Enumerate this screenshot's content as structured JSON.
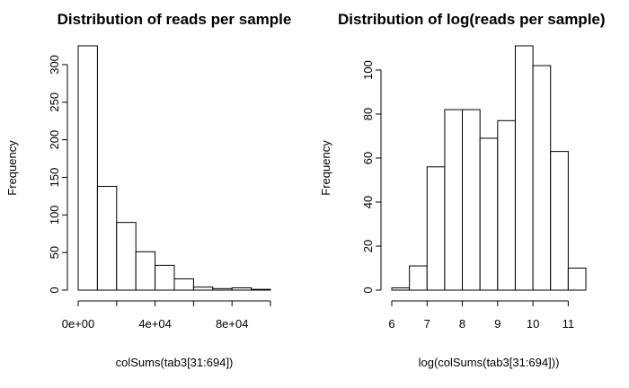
{
  "chart_data": [
    {
      "type": "bar",
      "title": "Distribution of reads per sample",
      "xlabel": "colSums(tab3[31:694])",
      "ylabel": "Frequency",
      "bins": [
        {
          "start": 0,
          "end": 10000,
          "count": 325
        },
        {
          "start": 10000,
          "end": 20000,
          "count": 138
        },
        {
          "start": 20000,
          "end": 30000,
          "count": 90
        },
        {
          "start": 30000,
          "end": 40000,
          "count": 51
        },
        {
          "start": 40000,
          "end": 50000,
          "count": 33
        },
        {
          "start": 50000,
          "end": 60000,
          "count": 15
        },
        {
          "start": 60000,
          "end": 70000,
          "count": 4
        },
        {
          "start": 70000,
          "end": 80000,
          "count": 2
        },
        {
          "start": 80000,
          "end": 90000,
          "count": 3
        },
        {
          "start": 90000,
          "end": 100000,
          "count": 1
        }
      ],
      "xlim": [
        0,
        100000
      ],
      "ylim": [
        0,
        325
      ],
      "xticks": [
        0,
        20000,
        40000,
        60000,
        80000,
        100000
      ],
      "xtick_labels": [
        "0e+00",
        "",
        "4e+04",
        "",
        "8e+04",
        ""
      ],
      "yticks": [
        0,
        50,
        100,
        150,
        200,
        250,
        300
      ],
      "ytick_labels": [
        "0",
        "50",
        "100",
        "150",
        "200",
        "250",
        "300"
      ],
      "grid": false,
      "legend": "none"
    },
    {
      "type": "bar",
      "title": "Distribution of log(reads per sample)",
      "xlabel": "log(colSums(tab3[31:694]))",
      "ylabel": "Frequency",
      "bins": [
        {
          "start": 6.0,
          "end": 6.5,
          "count": 1
        },
        {
          "start": 6.5,
          "end": 7.0,
          "count": 11
        },
        {
          "start": 7.0,
          "end": 7.5,
          "count": 56
        },
        {
          "start": 7.5,
          "end": 8.0,
          "count": 82
        },
        {
          "start": 8.0,
          "end": 8.5,
          "count": 82
        },
        {
          "start": 8.5,
          "end": 9.0,
          "count": 69
        },
        {
          "start": 9.0,
          "end": 9.5,
          "count": 77
        },
        {
          "start": 9.5,
          "end": 10.0,
          "count": 111
        },
        {
          "start": 10.0,
          "end": 10.5,
          "count": 102
        },
        {
          "start": 10.5,
          "end": 11.0,
          "count": 63
        },
        {
          "start": 11.0,
          "end": 11.5,
          "count": 10
        }
      ],
      "xlim": [
        6,
        11.5
      ],
      "ylim": [
        0,
        111
      ],
      "xticks": [
        6,
        7,
        8,
        9,
        10,
        11
      ],
      "xtick_labels": [
        "6",
        "7",
        "8",
        "9",
        "10",
        "11"
      ],
      "yticks": [
        0,
        20,
        40,
        60,
        80,
        100
      ],
      "ytick_labels": [
        "0",
        "20",
        "40",
        "60",
        "80",
        "100"
      ],
      "grid": false,
      "legend": "none"
    }
  ]
}
